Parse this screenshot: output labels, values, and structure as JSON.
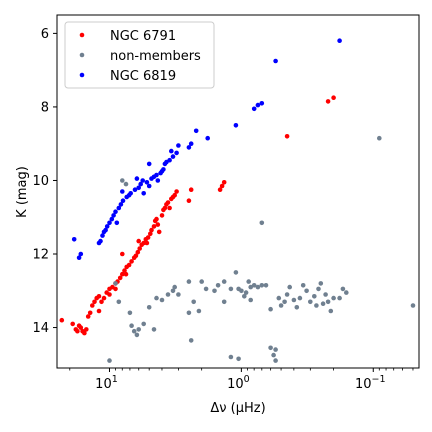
{
  "chart_data": {
    "type": "scatter",
    "title": "",
    "xlabel": "Δν (μHz)",
    "ylabel": "K (mag)",
    "x_scale": "log",
    "x_inverted": true,
    "xlim": [
      25,
      0.045
    ],
    "ylim": [
      15.1,
      5.5
    ],
    "y_inverted": true,
    "grid": false,
    "legend_position": "top-left",
    "x_ticks": [
      {
        "value": 10,
        "label_base": "10",
        "label_exp": "1"
      },
      {
        "value": 1,
        "label_base": "10",
        "label_exp": "0"
      },
      {
        "value": 0.1,
        "label_base": "10",
        "label_exp": "−1"
      }
    ],
    "y_ticks": [
      {
        "value": 6,
        "label": "6"
      },
      {
        "value": 8,
        "label": "8"
      },
      {
        "value": 10,
        "label": "10"
      },
      {
        "value": 12,
        "label": "12"
      },
      {
        "value": 14,
        "label": "14"
      }
    ],
    "series": [
      {
        "name": "NGC 6791",
        "color": "#ff0000",
        "points": [
          [
            23.0,
            13.8
          ],
          [
            19.0,
            13.9
          ],
          [
            18.0,
            14.05
          ],
          [
            17.5,
            14.1
          ],
          [
            17.0,
            13.95
          ],
          [
            16.5,
            14.0
          ],
          [
            16.0,
            14.1
          ],
          [
            15.5,
            14.15
          ],
          [
            15.0,
            14.05
          ],
          [
            14.5,
            13.7
          ],
          [
            14.0,
            13.6
          ],
          [
            13.5,
            13.4
          ],
          [
            13.0,
            13.3
          ],
          [
            12.5,
            13.2
          ],
          [
            12.0,
            13.15
          ],
          [
            11.5,
            13.3
          ],
          [
            11.0,
            13.2
          ],
          [
            10.5,
            13.05
          ],
          [
            10.0,
            12.95
          ],
          [
            9.5,
            12.9
          ],
          [
            9.0,
            12.8
          ],
          [
            8.7,
            12.75
          ],
          [
            8.3,
            12.65
          ],
          [
            8.0,
            12.55
          ],
          [
            7.7,
            12.45
          ],
          [
            7.4,
            12.35
          ],
          [
            7.1,
            12.3
          ],
          [
            6.8,
            12.2
          ],
          [
            6.5,
            12.1
          ],
          [
            6.3,
            12.05
          ],
          [
            6.1,
            11.95
          ],
          [
            5.9,
            11.85
          ],
          [
            5.7,
            11.75
          ],
          [
            5.5,
            11.7
          ],
          [
            5.3,
            11.6
          ],
          [
            5.1,
            11.55
          ],
          [
            4.9,
            11.45
          ],
          [
            4.8,
            11.35
          ],
          [
            4.6,
            11.25
          ],
          [
            4.5,
            11.1
          ],
          [
            4.4,
            11.05
          ],
          [
            4.3,
            11.2
          ],
          [
            4.2,
            11.4
          ],
          [
            4.0,
            10.95
          ],
          [
            3.9,
            10.8
          ],
          [
            3.8,
            10.75
          ],
          [
            3.7,
            10.65
          ],
          [
            3.6,
            10.6
          ],
          [
            3.5,
            10.75
          ],
          [
            3.4,
            10.5
          ],
          [
            3.3,
            10.45
          ],
          [
            3.2,
            10.4
          ],
          [
            3.1,
            10.3
          ],
          [
            2.5,
            10.55
          ],
          [
            2.4,
            10.25
          ],
          [
            1.45,
            10.25
          ],
          [
            1.4,
            10.15
          ],
          [
            1.35,
            10.05
          ],
          [
            0.45,
            8.8
          ],
          [
            0.22,
            7.85
          ],
          [
            0.2,
            7.75
          ],
          [
            8.0,
            12.0
          ],
          [
            6.0,
            11.65
          ],
          [
            7.5,
            12.55
          ],
          [
            5.2,
            11.7
          ],
          [
            12.0,
            13.55
          ],
          [
            10.0,
            13.1
          ],
          [
            9.0,
            12.95
          ]
        ]
      },
      {
        "name": "non-members",
        "color": "#708090",
        "points": [
          [
            9.0,
            12.8
          ],
          [
            8.5,
            13.3
          ],
          [
            8.0,
            10.0
          ],
          [
            7.5,
            10.1
          ],
          [
            7.0,
            13.6
          ],
          [
            6.8,
            13.95
          ],
          [
            6.5,
            14.1
          ],
          [
            6.2,
            14.2
          ],
          [
            6.0,
            14.05
          ],
          [
            5.5,
            13.9
          ],
          [
            5.0,
            13.45
          ],
          [
            4.6,
            14.05
          ],
          [
            4.4,
            13.2
          ],
          [
            4.0,
            13.25
          ],
          [
            3.6,
            13.1
          ],
          [
            3.3,
            13.0
          ],
          [
            3.0,
            13.1
          ],
          [
            2.5,
            13.6
          ],
          [
            2.4,
            14.35
          ],
          [
            2.1,
            13.55
          ],
          [
            2.0,
            12.75
          ],
          [
            1.85,
            12.95
          ],
          [
            1.6,
            13.0
          ],
          [
            1.5,
            12.85
          ],
          [
            1.35,
            12.75
          ],
          [
            1.2,
            12.95
          ],
          [
            1.1,
            12.5
          ],
          [
            1.05,
            12.95
          ],
          [
            1.0,
            13.0
          ],
          [
            0.95,
            13.15
          ],
          [
            0.92,
            13.05
          ],
          [
            0.88,
            12.75
          ],
          [
            0.85,
            13.25
          ],
          [
            0.8,
            12.85
          ],
          [
            0.75,
            12.9
          ],
          [
            0.7,
            12.85
          ],
          [
            0.65,
            12.85
          ],
          [
            0.6,
            13.5
          ],
          [
            0.57,
            14.75
          ],
          [
            0.55,
            14.9
          ],
          [
            0.52,
            13.2
          ],
          [
            0.5,
            13.4
          ],
          [
            0.47,
            13.3
          ],
          [
            0.45,
            13.1
          ],
          [
            0.43,
            12.9
          ],
          [
            0.4,
            13.25
          ],
          [
            0.38,
            13.45
          ],
          [
            0.36,
            13.2
          ],
          [
            0.34,
            12.85
          ],
          [
            0.32,
            13.0
          ],
          [
            0.3,
            13.3
          ],
          [
            0.28,
            13.15
          ],
          [
            0.27,
            13.4
          ],
          [
            0.26,
            12.95
          ],
          [
            0.25,
            12.8
          ],
          [
            0.24,
            13.35
          ],
          [
            0.23,
            13.1
          ],
          [
            0.22,
            13.3
          ],
          [
            0.21,
            13.55
          ],
          [
            0.2,
            13.2
          ],
          [
            0.18,
            13.2
          ],
          [
            0.17,
            12.95
          ],
          [
            0.16,
            13.05
          ],
          [
            0.09,
            8.85
          ],
          [
            0.05,
            13.4
          ],
          [
            1.05,
            14.85
          ],
          [
            0.6,
            14.55
          ],
          [
            0.55,
            14.6
          ],
          [
            1.2,
            14.8
          ],
          [
            0.7,
            11.15
          ],
          [
            2.5,
            12.75
          ],
          [
            3.2,
            12.9
          ],
          [
            1.35,
            13.3
          ],
          [
            0.85,
            12.9
          ],
          [
            10.0,
            14.9
          ],
          [
            2.3,
            13.3
          ]
        ]
      },
      {
        "name": "NGC 6819",
        "color": "#0000ff",
        "points": [
          [
            18.5,
            11.6
          ],
          [
            17.0,
            12.1
          ],
          [
            16.5,
            12.0
          ],
          [
            12.0,
            11.7
          ],
          [
            11.7,
            11.65
          ],
          [
            11.3,
            11.5
          ],
          [
            11.0,
            11.4
          ],
          [
            10.7,
            11.35
          ],
          [
            10.4,
            11.25
          ],
          [
            10.0,
            11.15
          ],
          [
            9.6,
            11.05
          ],
          [
            9.3,
            10.95
          ],
          [
            9.0,
            10.85
          ],
          [
            8.8,
            11.15
          ],
          [
            8.5,
            10.75
          ],
          [
            8.2,
            10.65
          ],
          [
            7.9,
            10.55
          ],
          [
            7.4,
            10.45
          ],
          [
            7.1,
            10.4
          ],
          [
            6.9,
            10.35
          ],
          [
            6.4,
            10.25
          ],
          [
            6.2,
            9.95
          ],
          [
            6.0,
            10.2
          ],
          [
            5.8,
            10.1
          ],
          [
            5.6,
            10.0
          ],
          [
            5.5,
            10.35
          ],
          [
            5.2,
            10.05
          ],
          [
            5.0,
            10.15
          ],
          [
            4.8,
            9.95
          ],
          [
            4.6,
            9.9
          ],
          [
            4.4,
            9.85
          ],
          [
            4.3,
            10.0
          ],
          [
            4.1,
            9.8
          ],
          [
            4.0,
            9.75
          ],
          [
            3.9,
            9.7
          ],
          [
            3.8,
            9.55
          ],
          [
            3.7,
            9.5
          ],
          [
            3.5,
            9.45
          ],
          [
            3.4,
            9.2
          ],
          [
            3.3,
            9.35
          ],
          [
            3.1,
            9.25
          ],
          [
            3.0,
            9.05
          ],
          [
            5.0,
            9.55
          ],
          [
            2.5,
            9.1
          ],
          [
            2.4,
            9.0
          ],
          [
            2.2,
            8.65
          ],
          [
            1.8,
            8.85
          ],
          [
            1.1,
            8.5
          ],
          [
            0.8,
            8.05
          ],
          [
            0.75,
            7.95
          ],
          [
            0.7,
            7.9
          ],
          [
            0.55,
            6.75
          ],
          [
            0.18,
            6.2
          ],
          [
            8.0,
            10.3
          ]
        ]
      }
    ]
  }
}
